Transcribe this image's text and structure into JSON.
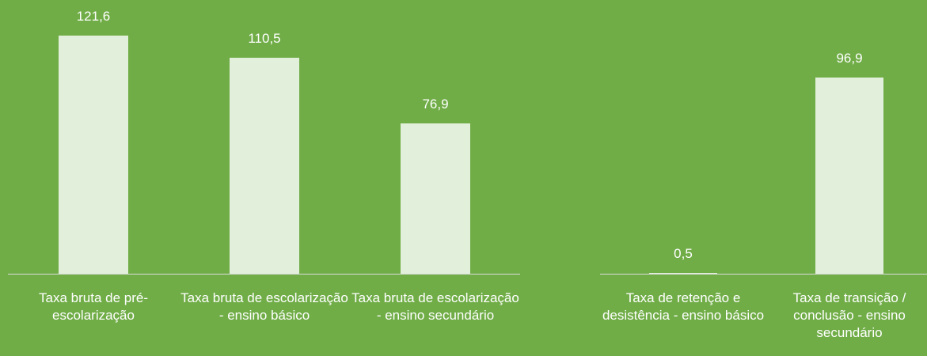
{
  "chart_data": [
    {
      "type": "bar",
      "categories": [
        "Taxa bruta de pré-escolarização",
        "Taxa bruta de escolarização - ensino básico",
        "Taxa bruta de escolarização - ensino secundário"
      ],
      "values": [
        121.6,
        110.5,
        76.9
      ],
      "value_labels": [
        "121,6",
        "110,5",
        "76,9"
      ],
      "color": "#e2efda",
      "ylim": [
        0,
        140
      ]
    },
    {
      "type": "bar",
      "categories": [
        "Taxa de retenção e desistência - ensino básico",
        "Taxa de transição / conclusão - ensino secundário"
      ],
      "values": [
        0.5,
        96.9
      ],
      "value_labels": [
        "0,5",
        "96,9"
      ],
      "color": "#e2efda",
      "ylim": [
        0,
        135
      ]
    }
  ]
}
